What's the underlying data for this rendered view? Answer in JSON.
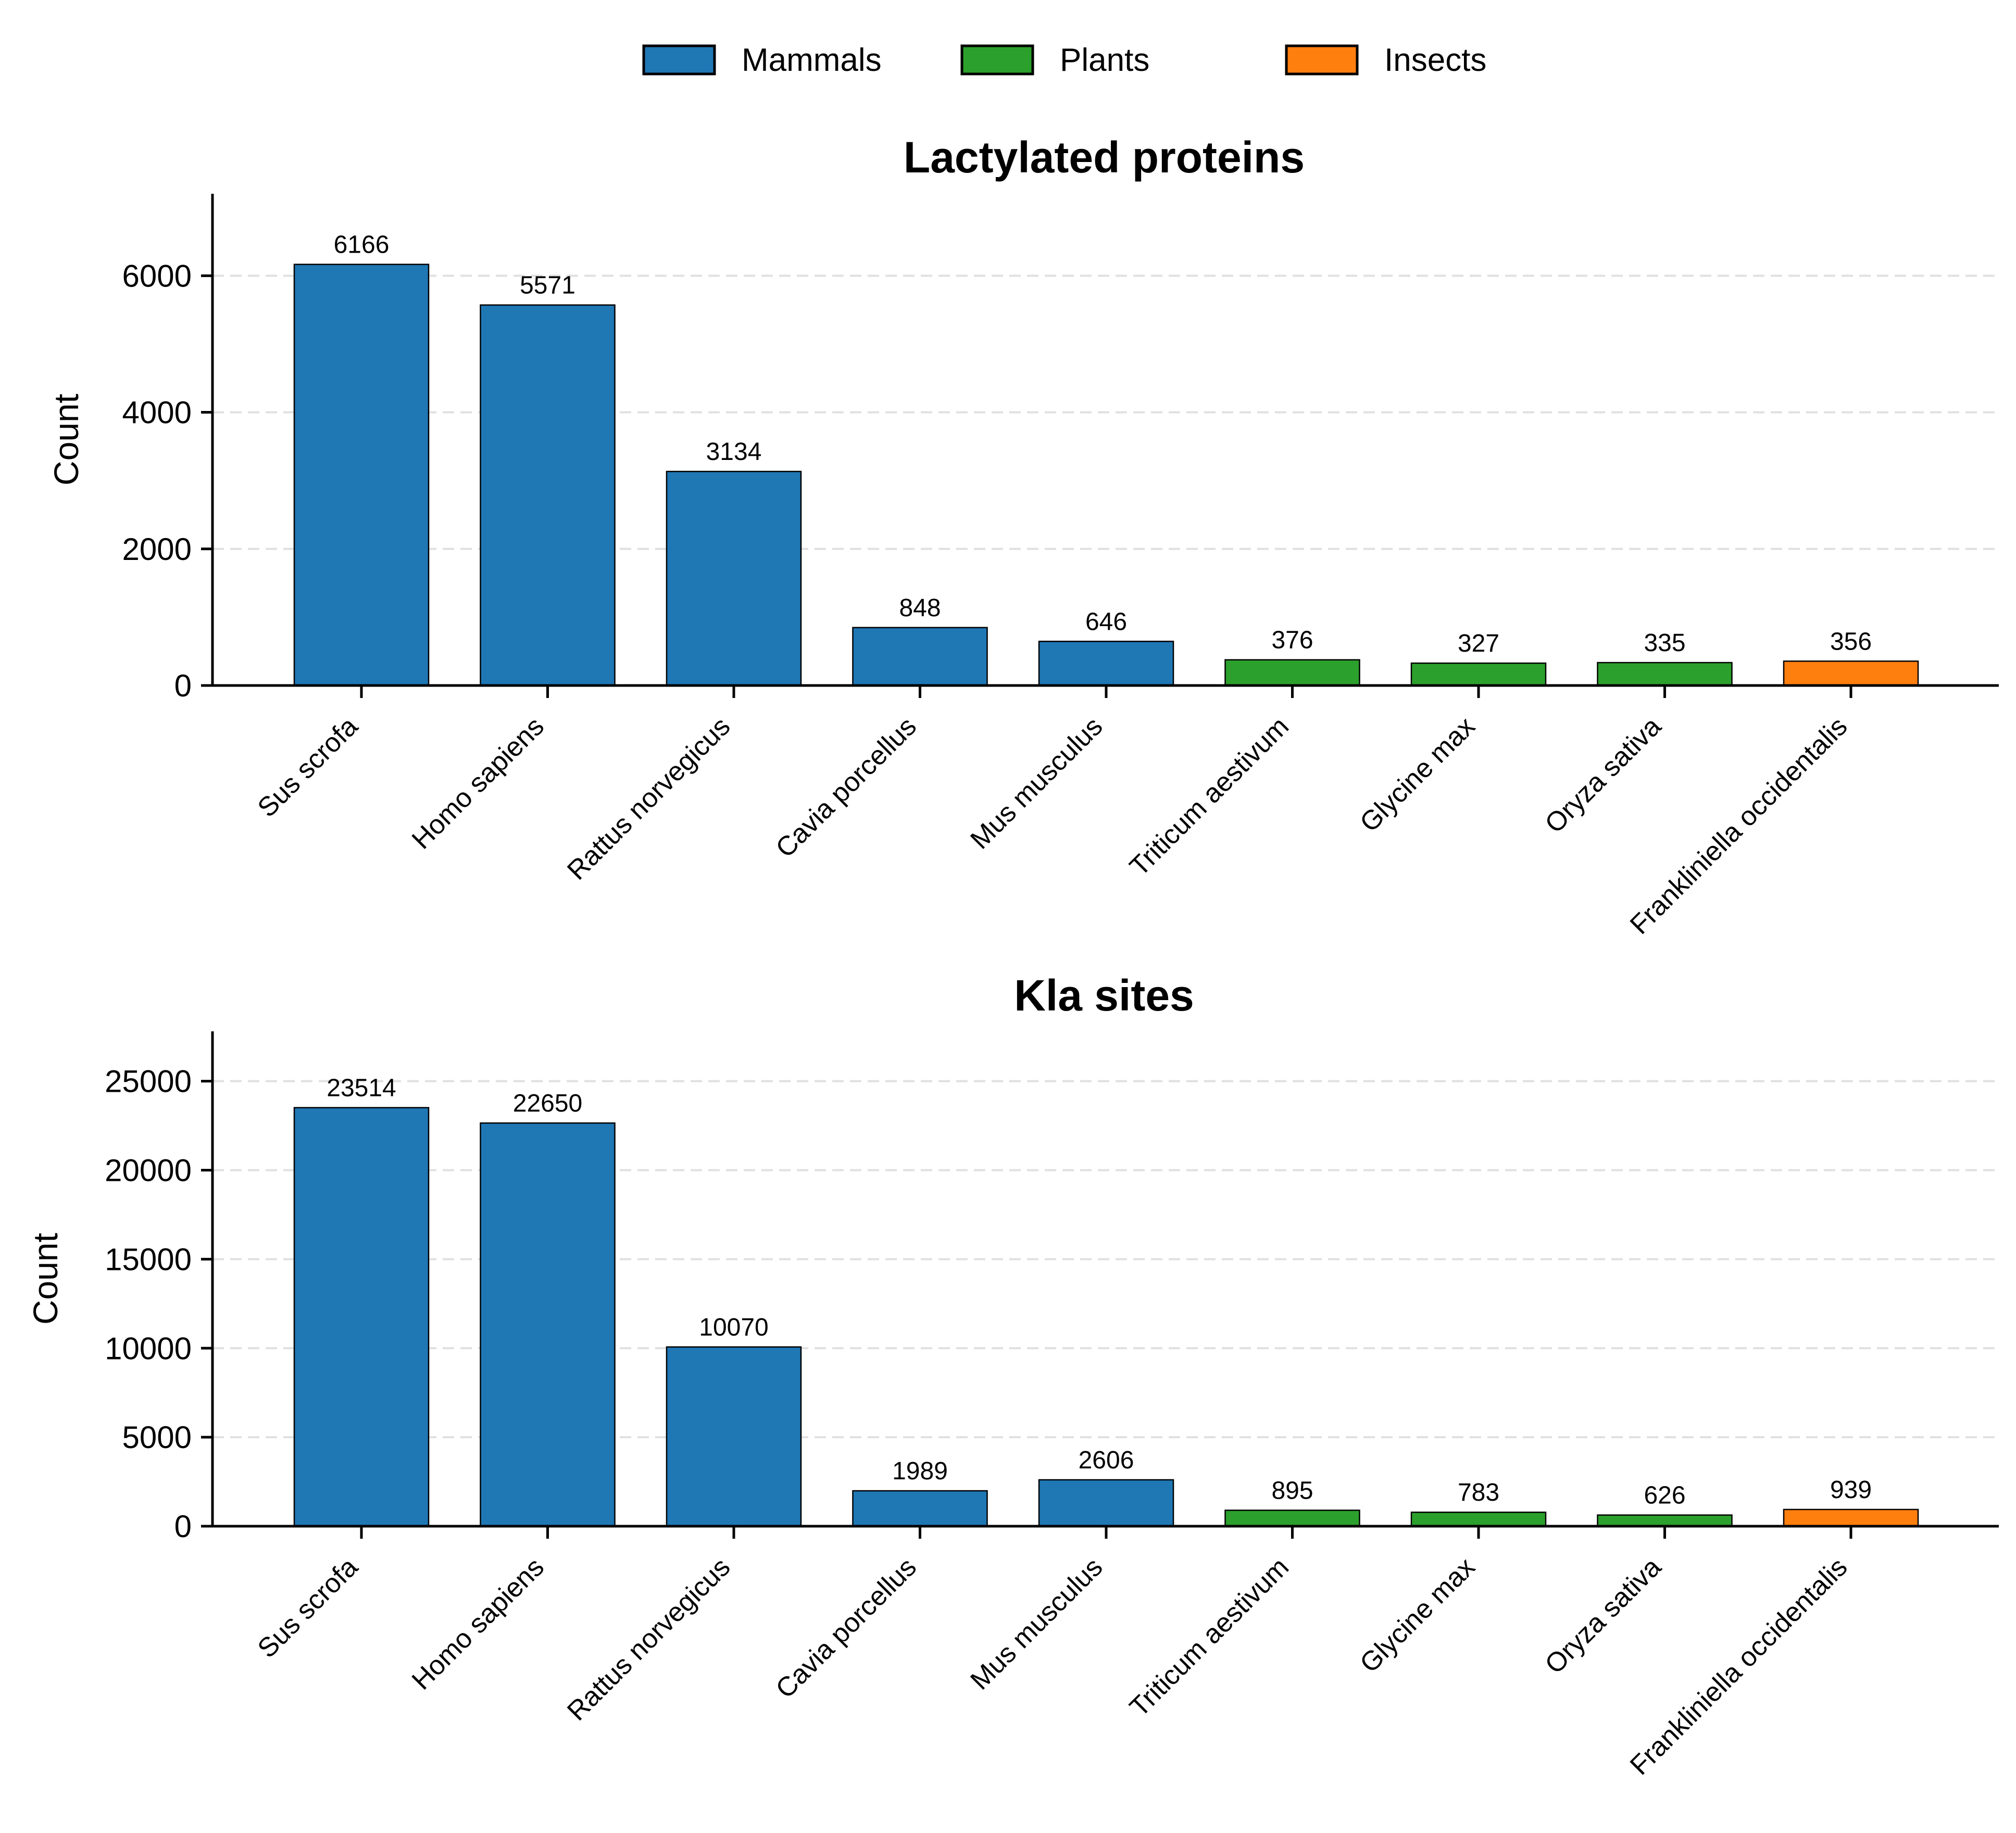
{
  "legend": {
    "items": [
      {
        "label": "Mammals",
        "color": "#1f77b4"
      },
      {
        "label": "Plants",
        "color": "#2ca02c"
      },
      {
        "label": "Insects",
        "color": "#ff7f0e"
      }
    ]
  },
  "chart_data": [
    {
      "type": "bar",
      "title": "Lactylated proteins",
      "xlabel": "",
      "ylabel": "Count",
      "ylim": [
        0,
        7200
      ],
      "yticks": [
        0,
        2000,
        4000,
        6000
      ],
      "grid": "y-dashed",
      "categories": [
        "Sus scrofa",
        "Homo sapiens",
        "Rattus norvegicus",
        "Cavia porcellus",
        "Mus musculus",
        "Triticum aestivum",
        "Glycine max",
        "Oryza sativa",
        "Frankliniella occidentalis"
      ],
      "groups": [
        "Mammals",
        "Mammals",
        "Mammals",
        "Mammals",
        "Mammals",
        "Plants",
        "Plants",
        "Plants",
        "Insects"
      ],
      "values": [
        6166,
        5571,
        3134,
        848,
        646,
        376,
        327,
        335,
        356
      ]
    },
    {
      "type": "bar",
      "title": "Kla sites",
      "xlabel": "",
      "ylabel": "Count",
      "ylim": [
        0,
        27800
      ],
      "yticks": [
        0,
        5000,
        10000,
        15000,
        20000,
        25000
      ],
      "grid": "y-dashed",
      "categories": [
        "Sus scrofa",
        "Homo sapiens",
        "Rattus norvegicus",
        "Cavia porcellus",
        "Mus musculus",
        "Triticum aestivum",
        "Glycine max",
        "Oryza sativa",
        "Frankliniella occidentalis"
      ],
      "groups": [
        "Mammals",
        "Mammals",
        "Mammals",
        "Mammals",
        "Mammals",
        "Plants",
        "Plants",
        "Plants",
        "Insects"
      ],
      "values": [
        23514,
        22650,
        10070,
        1989,
        2606,
        895,
        783,
        626,
        939
      ]
    }
  ]
}
